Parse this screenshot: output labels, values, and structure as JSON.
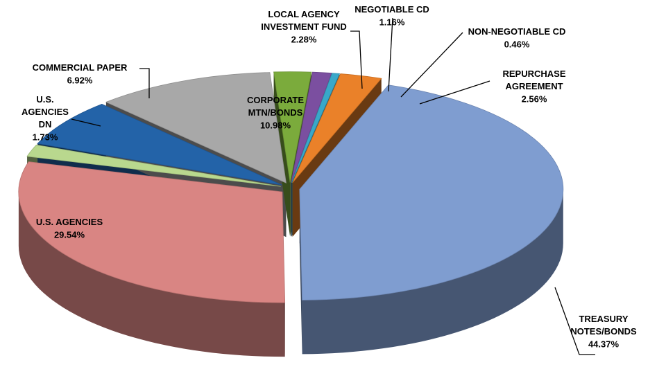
{
  "chart_data": {
    "type": "pie",
    "categories": [
      "TREASURY\nNOTES/BONDS",
      "U.S. AGENCIES",
      "U.S.\nAGENCIES\nDN",
      "COMMERCIAL PAPER",
      "CORPORATE\nMTN/BONDS",
      "LOCAL AGENCY\nINVESTMENT FUND",
      "NEGOTIABLE CD",
      "NON-NEGOTIABLE CD",
      "REPURCHASE\nAGREEMENT"
    ],
    "values": [
      44.37,
      29.54,
      1.73,
      6.92,
      10.98,
      2.28,
      1.16,
      0.46,
      2.56
    ],
    "value_labels": [
      "44.37%",
      "29.54%",
      "1.73%",
      "6.92%",
      "10.98%",
      "2.28%",
      "1.16%",
      "0.46%",
      "2.56%"
    ],
    "colors": [
      "#7f9dd0",
      "#d98583",
      "#b9d88e",
      "#2363a8",
      "#a8a8a8",
      "#7bab3c",
      "#7b4fa0",
      "#39a8c9",
      "#ea8129"
    ]
  }
}
